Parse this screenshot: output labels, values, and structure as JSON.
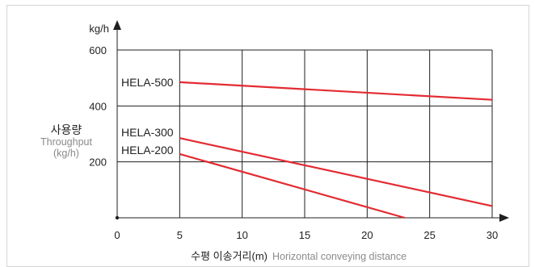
{
  "chart_data": {
    "type": "line",
    "y_unit": "kg/h",
    "y_title_ko": "사용량",
    "y_title_en_1": "Throughput",
    "y_title_en_2": "(kg/h)",
    "x_title_ko": "수평 이송거리(m)",
    "x_title_en": "Horizontal conveying distance",
    "x_ticks": [
      0,
      5,
      10,
      15,
      20,
      25,
      30
    ],
    "y_ticks": [
      200,
      400,
      600
    ],
    "xlim": [
      0,
      31.5
    ],
    "ylim": [
      0,
      600
    ],
    "grid": true,
    "line_color": "#e32b32",
    "series": [
      {
        "name": "HELA-500",
        "x": [
          5,
          30
        ],
        "y": [
          485,
          422
        ]
      },
      {
        "name": "HELA-300",
        "x": [
          5,
          30
        ],
        "y": [
          285,
          42
        ]
      },
      {
        "name": "HELA-200",
        "x": [
          5,
          23
        ],
        "y": [
          228,
          0
        ]
      }
    ]
  }
}
